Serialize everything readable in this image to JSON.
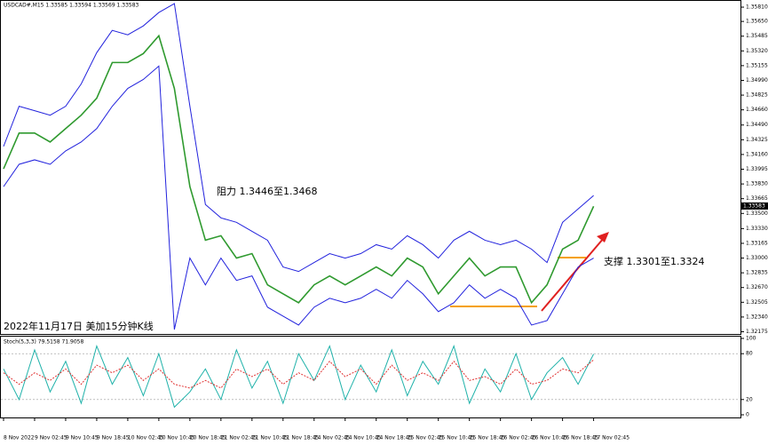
{
  "chart_data": [
    {
      "type": "line",
      "title": "USDCAD#,M15  1.33585 1.33594 1.33569 1.33583",
      "categories": [
        "8 Nov 2022",
        null,
        "9 Nov 02:45",
        null,
        "9 Nov 10:45",
        null,
        "9 Nov 18:45",
        null,
        "10 Nov 02:45",
        null,
        "10 Nov 10:45",
        null,
        "10 Nov 18:45",
        null,
        "11 Nov 02:45",
        null,
        "11 Nov 10:45",
        null,
        "11 Nov 18:45",
        null,
        "14 Nov 02:45",
        null,
        "14 Nov 10:45",
        null,
        "14 Nov 18:45",
        null,
        "15 Nov 02:45",
        null,
        "15 Nov 10:45",
        null,
        "15 Nov 18:45",
        null,
        "16 Nov 02:45",
        null,
        "16 Nov 10:45",
        null,
        "16 Nov 18:45",
        null,
        "17 Nov 02:45",
        null,
        null,
        null,
        null,
        null,
        null,
        null,
        null,
        null
      ],
      "series": [
        {
          "color": "#2f9a2f",
          "values": [
            1.34,
            1.344,
            1.344,
            1.343,
            1.3445,
            1.346,
            1.3479,
            1.3519,
            1.3519,
            1.3529,
            1.3549,
            1.349,
            1.338,
            1.332,
            1.3325,
            1.33,
            1.3305,
            1.327,
            1.326,
            1.325,
            1.327,
            1.328,
            1.327,
            1.328,
            1.329,
            1.328,
            1.33,
            1.329,
            1.326,
            1.328,
            1.33,
            1.328,
            1.329,
            1.329,
            1.325,
            1.327,
            1.331,
            1.332,
            1.3358,
            null,
            null,
            null,
            null,
            null,
            null,
            null,
            null,
            null
          ]
        },
        {
          "color": "#2222dd",
          "values": [
            1.3425,
            1.347,
            1.3465,
            1.346,
            1.347,
            1.3495,
            1.353,
            1.3555,
            1.355,
            1.356,
            1.3575,
            1.3585,
            1.347,
            1.336,
            1.3345,
            1.334,
            1.333,
            1.332,
            1.329,
            1.3285,
            1.3295,
            1.3305,
            1.33,
            1.3305,
            1.3315,
            1.331,
            1.3325,
            1.3315,
            1.33,
            1.332,
            1.333,
            1.332,
            1.3315,
            1.332,
            1.331,
            1.3295,
            1.334,
            1.3355,
            1.337,
            null,
            null,
            null,
            null,
            null,
            null,
            null,
            null,
            null
          ]
        },
        {
          "color": "#2222dd",
          "values": [
            1.338,
            1.3405,
            1.341,
            1.3405,
            1.342,
            1.343,
            1.3445,
            1.347,
            1.349,
            1.35,
            1.3515,
            1.322,
            1.33,
            1.327,
            1.33,
            1.3275,
            1.328,
            1.3245,
            1.3235,
            1.3225,
            1.3245,
            1.3255,
            1.325,
            1.3255,
            1.3265,
            1.3255,
            1.3275,
            1.326,
            1.324,
            1.325,
            1.327,
            1.3255,
            1.3265,
            1.3255,
            1.3225,
            1.323,
            1.326,
            1.329,
            1.33,
            null,
            null,
            null,
            null,
            null,
            null,
            null,
            null,
            null
          ]
        }
      ],
      "ylim": [
        1.3215,
        1.3589
      ],
      "yticks": [
        {
          "value": 1.3581,
          "label": "1.35810"
        },
        {
          "value": 1.3565,
          "label": "1.35650"
        },
        {
          "value": 1.35485,
          "label": "1.35485"
        },
        {
          "value": 1.3532,
          "label": "1.35320"
        },
        {
          "value": 1.35155,
          "label": "1.35155"
        },
        {
          "value": 1.3499,
          "label": "1.34990"
        },
        {
          "value": 1.34825,
          "label": "1.34825"
        },
        {
          "value": 1.3466,
          "label": "1.34660"
        },
        {
          "value": 1.3449,
          "label": "1.34490"
        },
        {
          "value": 1.34325,
          "label": "1.34325"
        },
        {
          "value": 1.3416,
          "label": "1.34160"
        },
        {
          "value": 1.33995,
          "label": "1.33995"
        },
        {
          "value": 1.3383,
          "label": "1.33830"
        },
        {
          "value": 1.33665,
          "label": "1.33665"
        },
        {
          "value": 1.335,
          "label": "1.33500"
        },
        {
          "value": 1.3333,
          "label": "1.33330"
        },
        {
          "value": 1.33165,
          "label": "1.33165"
        },
        {
          "value": 1.33,
          "label": "1.33000"
        },
        {
          "value": 1.32835,
          "label": "1.32835"
        },
        {
          "value": 1.3267,
          "label": "1.32670"
        },
        {
          "value": 1.32505,
          "label": "1.32505"
        },
        {
          "value": 1.3234,
          "label": "1.32340"
        },
        {
          "value": 1.32175,
          "label": "1.32175"
        }
      ],
      "current_price": 1.33583,
      "annotations": [
        "阻力 1.3446至1.3468",
        "支撑 1.3301至1.3324",
        "2022年11月17日 美加15分钟K线"
      ]
    },
    {
      "type": "line",
      "title": "Stoch(5,3,3) 79.5158 71.9058",
      "series": [
        {
          "color": "#20b2aa",
          "values": [
            60,
            20,
            85,
            30,
            70,
            15,
            90,
            40,
            75,
            25,
            80,
            10,
            30,
            60,
            20,
            85,
            35,
            70,
            15,
            80,
            45,
            90,
            20,
            65,
            30,
            85,
            25,
            70,
            40,
            90,
            15,
            60,
            30,
            80,
            20,
            55,
            75,
            40,
            79.5158,
            null,
            null,
            null,
            null,
            null,
            null,
            null,
            null,
            null
          ]
        },
        {
          "color": "#e03030",
          "dashed": true,
          "values": [
            55,
            40,
            55,
            45,
            60,
            40,
            65,
            55,
            65,
            45,
            60,
            40,
            35,
            45,
            35,
            60,
            50,
            60,
            40,
            55,
            45,
            70,
            50,
            60,
            40,
            65,
            45,
            55,
            45,
            70,
            45,
            50,
            40,
            60,
            40,
            45,
            60,
            55,
            71.9058,
            null,
            null,
            null,
            null,
            null,
            null,
            null,
            null,
            null
          ]
        }
      ],
      "ylim": [
        0,
        100
      ],
      "yticks": [
        100,
        80,
        20,
        0
      ]
    }
  ]
}
